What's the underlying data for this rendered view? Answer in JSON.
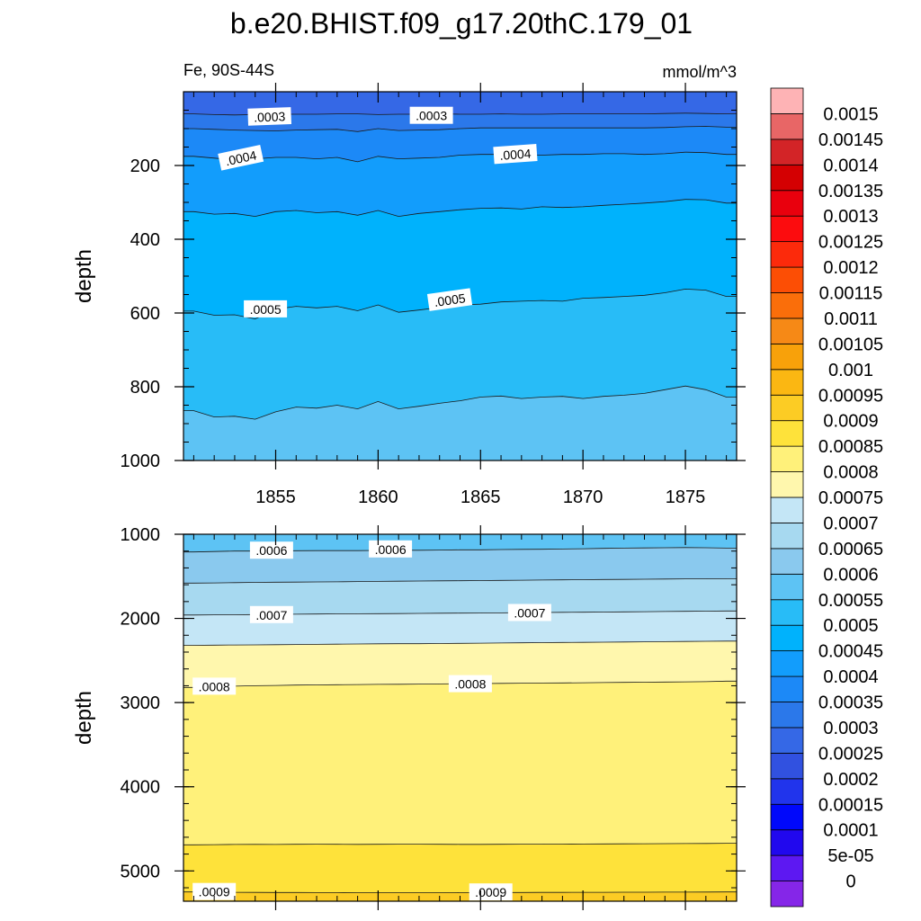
{
  "chart_data": {
    "type": "contour",
    "title": "b.e20.BHIST.f09_g17.20thC.179_01",
    "variable_label": "Fe, 90S-44S",
    "units_label": "mmol/m^3",
    "x_range": [
      1850.5,
      1877.5
    ],
    "x_ticks": [
      1855,
      1860,
      1865,
      1870,
      1875
    ],
    "x_tick_labels": [
      "1855",
      "1860",
      "1865",
      "1870",
      "1875"
    ],
    "x_years": [
      1851,
      1852,
      1853,
      1854,
      1855,
      1856,
      1857,
      1858,
      1859,
      1860,
      1861,
      1862,
      1863,
      1864,
      1865,
      1866,
      1867,
      1868,
      1869,
      1870,
      1871,
      1872,
      1873,
      1874,
      1875,
      1876,
      1877
    ],
    "panels": [
      {
        "name": "upper",
        "ylabel": "depth",
        "ylim": [
          0,
          1000
        ],
        "y_ticks": [
          200,
          400,
          600,
          800,
          1000
        ],
        "y_tick_labels": [
          "200",
          "400",
          "600",
          "800",
          "1000"
        ],
        "top_fill_index": 6,
        "bands": [
          {
            "bottom_level": 0.0003,
            "fill_index": 7,
            "depths": [
              60,
              62,
              63,
              62,
              61,
              61,
              61,
              60,
              60,
              62,
              61,
              61,
              60,
              61,
              61,
              60,
              61,
              61,
              60,
              60,
              60,
              60,
              60,
              59,
              58,
              59,
              60
            ]
          },
          {
            "bottom_level": 0.00035,
            "fill_index": 8,
            "depths": [
              100,
              102,
              104,
              105,
              106,
              104,
              103,
              102,
              108,
              100,
              105,
              104,
              103,
              100,
              98,
              98,
              98,
              98,
              98,
              98,
              98,
              98,
              98,
              97,
              95,
              94,
              96
            ]
          },
          {
            "bottom_level": 0.0004,
            "fill_index": 9,
            "depths": [
              175,
              180,
              185,
              182,
              178,
              178,
              182,
              178,
              190,
              175,
              182,
              180,
              178,
              172,
              170,
              170,
              172,
              172,
              170,
              170,
              168,
              168,
              170,
              168,
              164,
              165,
              170
            ]
          },
          {
            "bottom_level": 0.00045,
            "fill_index": 10,
            "depths": [
              325,
              332,
              330,
              338,
              325,
              322,
              328,
              325,
              335,
              322,
              338,
              330,
              325,
              320,
              316,
              315,
              318,
              312,
              314,
              312,
              308,
              305,
              302,
              298,
              292,
              293,
              302
            ]
          },
          {
            "bottom_level": 0.0005,
            "fill_index": 11,
            "depths": [
              595,
              606,
              605,
              616,
              590,
              582,
              586,
              582,
              594,
              578,
              598,
              592,
              585,
              578,
              576,
              570,
              568,
              566,
              568,
              560,
              558,
              555,
              552,
              545,
              535,
              538,
              555
            ]
          },
          {
            "bottom_level": 0.00055,
            "fill_index": 12,
            "depths": [
              865,
              882,
              880,
              888,
              868,
              855,
              858,
              850,
              860,
              840,
              860,
              853,
              845,
              838,
              828,
              825,
              832,
              828,
              826,
              832,
              826,
              823,
              818,
              808,
              798,
              808,
              828
            ]
          }
        ],
        "contour_labels": [
          {
            "text": ".0003",
            "year": 1854.7,
            "depth": 68,
            "angle": -2
          },
          {
            "text": ".0003",
            "year": 1862.6,
            "depth": 65,
            "angle": 0
          },
          {
            "text": ".0004",
            "year": 1853.3,
            "depth": 180,
            "angle": -12
          },
          {
            "text": ".0004",
            "year": 1866.7,
            "depth": 170,
            "angle": -4
          },
          {
            "text": ".0005",
            "year": 1854.5,
            "depth": 590,
            "angle": 0
          },
          {
            "text": ".0005",
            "year": 1863.5,
            "depth": 565,
            "angle": -8
          }
        ]
      },
      {
        "name": "lower",
        "ylabel": "depth",
        "ylim": [
          1000,
          5360
        ],
        "y_ticks": [
          1000,
          2000,
          3000,
          4000,
          5000
        ],
        "y_tick_labels": [
          "1000",
          "2000",
          "3000",
          "4000",
          "5000"
        ],
        "top_fill_index": 12,
        "bands": [
          {
            "bottom_level": 0.0006,
            "fill_index": 13,
            "depths": [
              1210,
              1205,
              1200,
              1200,
              1198,
              1196,
              1195,
              1195,
              1195,
              1192,
              1190,
              1190,
              1188,
              1185,
              1185,
              1182,
              1180,
              1178,
              1175,
              1172,
              1168,
              1165,
              1162,
              1160,
              1158,
              1160,
              1165
            ]
          },
          {
            "bottom_level": 0.00065,
            "fill_index": 14,
            "depths": [
              1580,
              1578,
              1575,
              1572,
              1570,
              1568,
              1566,
              1565,
              1562,
              1560,
              1558,
              1556,
              1554,
              1552,
              1550,
              1548,
              1546,
              1544,
              1542,
              1540,
              1538,
              1536,
              1534,
              1532,
              1530,
              1530,
              1528
            ]
          },
          {
            "bottom_level": 0.0007,
            "fill_index": 15,
            "depths": [
              1960,
              1958,
              1956,
              1954,
              1952,
              1950,
              1948,
              1946,
              1945,
              1944,
              1942,
              1940,
              1938,
              1937,
              1936,
              1934,
              1932,
              1930,
              1928,
              1926,
              1924,
              1922,
              1920,
              1918,
              1916,
              1914,
              1912
            ]
          },
          {
            "bottom_level": 0.00075,
            "fill_index": 16,
            "depths": [
              2320,
              2318,
              2316,
              2314,
              2312,
              2310,
              2308,
              2306,
              2304,
              2302,
              2300,
              2300,
              2298,
              2296,
              2294,
              2292,
              2290,
              2288,
              2286,
              2284,
              2282,
              2280,
              2278,
              2276,
              2274,
              2272,
              2270
            ]
          },
          {
            "bottom_level": 0.0008,
            "fill_index": 17,
            "depths": [
              2820,
              2812,
              2805,
              2800,
              2796,
              2792,
              2790,
              2788,
              2786,
              2784,
              2782,
              2780,
              2778,
              2776,
              2774,
              2772,
              2770,
              2768,
              2766,
              2764,
              2762,
              2760,
              2758,
              2756,
              2754,
              2752,
              2745
            ]
          },
          {
            "bottom_level": 0.00085,
            "fill_index": 18,
            "depths": [
              4690,
              4688,
              4686,
              4685,
              4686,
              4684,
              4683,
              4684,
              4685,
              4684,
              4683,
              4682,
              4684,
              4685,
              4685,
              4684,
              4683,
              4682,
              4681,
              4680,
              4679,
              4678,
              4677,
              4676,
              4675,
              4674,
              4672
            ]
          },
          {
            "bottom_level": 0.0009,
            "fill_index": 19,
            "depths": [
              5250,
              5252,
              5254,
              5255,
              5256,
              5256,
              5257,
              5257,
              5258,
              5258,
              5258,
              5258,
              5258,
              5257,
              5257,
              5256,
              5256,
              5255,
              5255,
              5254,
              5254,
              5253,
              5253,
              5252,
              5252,
              5251,
              5250
            ]
          }
        ],
        "contour_labels": [
          {
            "text": ".0006",
            "year": 1854.8,
            "depth": 1195,
            "angle": 0
          },
          {
            "text": ".0006",
            "year": 1860.6,
            "depth": 1180,
            "angle": 0
          },
          {
            "text": ".0007",
            "year": 1854.8,
            "depth": 1960,
            "angle": 0
          },
          {
            "text": ".0007",
            "year": 1867.4,
            "depth": 1935,
            "angle": 0
          },
          {
            "text": ".0008",
            "year": 1852.0,
            "depth": 2810,
            "angle": 0
          },
          {
            "text": ".0008",
            "year": 1864.5,
            "depth": 2780,
            "angle": 0
          },
          {
            "text": ".0009",
            "year": 1852.0,
            "depth": 5250,
            "angle": 0
          },
          {
            "text": ".0009",
            "year": 1865.5,
            "depth": 5255,
            "angle": 0
          }
        ]
      }
    ],
    "colorbar": {
      "labels": [
        "0",
        "5e-05",
        "0.0001",
        "0.00015",
        "0.0002",
        "0.00025",
        "0.0003",
        "0.00035",
        "0.0004",
        "0.00045",
        "0.0005",
        "0.00055",
        "0.0006",
        "0.00065",
        "0.0007",
        "0.00075",
        "0.0008",
        "0.00085",
        "0.0009",
        "0.00095",
        "0.001",
        "0.00105",
        "0.0011",
        "0.00115",
        "0.0012",
        "0.00125",
        "0.0013",
        "0.00135",
        "0.0014",
        "0.00145",
        "0.0015"
      ],
      "colors": [
        "#8526e8",
        "#5d18f2",
        "#2108ee",
        "#0008fb",
        "#2134ec",
        "#3151e0",
        "#3568e6",
        "#2b78ea",
        "#1c89f7",
        "#129dfc",
        "#00b2fc",
        "#28bcf7",
        "#5dc3f4",
        "#8ac9ee",
        "#a7d9f0",
        "#c4e6f6",
        "#fff7ad",
        "#fff17a",
        "#fee23a",
        "#fccc24",
        "#fbb712",
        "#f8a10a",
        "#f68916",
        "#fa6e0a",
        "#fc4e05",
        "#fc2a0b",
        "#fc0c0e",
        "#e9000d",
        "#d40002",
        "#d32427",
        "#e86666",
        "#feb3b5"
      ]
    }
  }
}
